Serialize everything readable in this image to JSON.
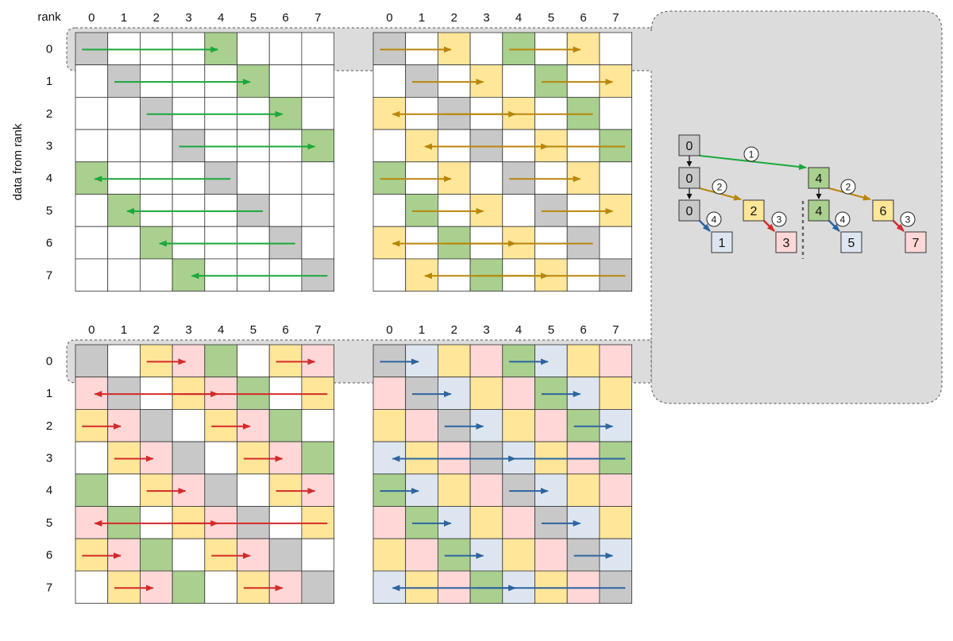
{
  "labels": {
    "rank_header": "rank",
    "row_axis": "data from rank",
    "col_ranks": [
      "0",
      "1",
      "2",
      "3",
      "4",
      "5",
      "6",
      "7"
    ],
    "row_ranks": [
      "0",
      "1",
      "2",
      "3",
      "4",
      "5",
      "6",
      "7"
    ]
  },
  "colors": {
    "white": "#ffffff",
    "gray": "#c8c8c8",
    "green": "#a9d08e",
    "yellow": "#ffe699",
    "pink": "#ffd7d7",
    "blue": "#dde6f0",
    "arrow_step1": "#1aa83a",
    "arrow_step2": "#b8860b",
    "arrow_step3": "#d42a2a",
    "arrow_step4": "#2e64a0",
    "panel_bg": "#dcdcdc"
  },
  "grids": [
    {
      "id": "step1",
      "cells": [
        "GWWWNWWW",
        "WGWWWNWW",
        "WWGWWWNW",
        "WWWGWWWN",
        "NWWWGWWW",
        "WNWWWGWW",
        "WWNWWWGW",
        "WWWNWWWG"
      ],
      "arrow_color": "arrow_step1",
      "arrows": [
        {
          "row": 0,
          "from": 0,
          "to": 4
        },
        {
          "row": 1,
          "from": 1,
          "to": 5
        },
        {
          "row": 2,
          "from": 2,
          "to": 6
        },
        {
          "row": 3,
          "from": 3,
          "to": 7
        },
        {
          "row": 4,
          "from": 4,
          "to": 0
        },
        {
          "row": 5,
          "from": 5,
          "to": 1
        },
        {
          "row": 6,
          "from": 6,
          "to": 2
        },
        {
          "row": 7,
          "from": 7,
          "to": 3
        }
      ]
    },
    {
      "id": "step2",
      "cells": [
        "GWYWNWYW",
        "WGWYWNWY",
        "YWGWYWNW",
        "WYWGWYWN",
        "NWYWGWYW",
        "WNWYWGWY",
        "YWNWYWGW",
        "WYWNWYWG"
      ],
      "arrow_color": "arrow_step2",
      "arrows": [
        {
          "row": 0,
          "from": 0,
          "to": 2
        },
        {
          "row": 0,
          "from": 4,
          "to": 6
        },
        {
          "row": 1,
          "from": 1,
          "to": 3
        },
        {
          "row": 1,
          "from": 5,
          "to": 7
        },
        {
          "row": 2,
          "from": 2,
          "to": 4
        },
        {
          "row": 2,
          "from": 6,
          "to": 0
        },
        {
          "row": 3,
          "from": 3,
          "to": 5
        },
        {
          "row": 3,
          "from": 7,
          "to": 1
        },
        {
          "row": 4,
          "from": 0,
          "to": 2
        },
        {
          "row": 4,
          "from": 4,
          "to": 6
        },
        {
          "row": 5,
          "from": 1,
          "to": 3
        },
        {
          "row": 5,
          "from": 5,
          "to": 7
        },
        {
          "row": 6,
          "from": 6,
          "to": 0
        },
        {
          "row": 6,
          "from": 2,
          "to": 4
        },
        {
          "row": 7,
          "from": 7,
          "to": 1
        },
        {
          "row": 7,
          "from": 3,
          "to": 5
        }
      ]
    },
    {
      "id": "step3",
      "cells": [
        "GWYPNWYP",
        "PGWYPNWY",
        "YPGWYPNW",
        "WYPGWYPN",
        "NWYPGWYP",
        "PNWYPGWY",
        "YPNWYPGW",
        "WYPNWYPG"
      ],
      "arrow_color": "arrow_step3",
      "arrows": [
        {
          "row": 0,
          "from": 2,
          "to": 3
        },
        {
          "row": 0,
          "from": 6,
          "to": 7
        },
        {
          "row": 1,
          "from": 7,
          "to": 0
        },
        {
          "row": 1,
          "from": 3,
          "to": 4
        },
        {
          "row": 2,
          "from": 0,
          "to": 1
        },
        {
          "row": 2,
          "from": 4,
          "to": 5
        },
        {
          "row": 3,
          "from": 1,
          "to": 2
        },
        {
          "row": 3,
          "from": 5,
          "to": 6
        },
        {
          "row": 4,
          "from": 2,
          "to": 3
        },
        {
          "row": 4,
          "from": 6,
          "to": 7
        },
        {
          "row": 5,
          "from": 7,
          "to": 0
        },
        {
          "row": 5,
          "from": 3,
          "to": 4
        },
        {
          "row": 6,
          "from": 0,
          "to": 1
        },
        {
          "row": 6,
          "from": 4,
          "to": 5
        },
        {
          "row": 7,
          "from": 1,
          "to": 2
        },
        {
          "row": 7,
          "from": 5,
          "to": 6
        }
      ]
    },
    {
      "id": "step4",
      "cells": [
        "GBYPNBYP",
        "PGBYPNBY",
        "YPGBYPNB",
        "BYPGBYPN",
        "NBYPGBYP",
        "PNBYPGBY",
        "YPNBYPGB",
        "BYPNBYPG"
      ],
      "arrow_color": "arrow_step4",
      "arrows": [
        {
          "row": 0,
          "from": 0,
          "to": 1
        },
        {
          "row": 0,
          "from": 4,
          "to": 5
        },
        {
          "row": 1,
          "from": 1,
          "to": 2
        },
        {
          "row": 1,
          "from": 5,
          "to": 6
        },
        {
          "row": 2,
          "from": 2,
          "to": 3
        },
        {
          "row": 2,
          "from": 6,
          "to": 7
        },
        {
          "row": 3,
          "from": 7,
          "to": 0
        },
        {
          "row": 3,
          "from": 3,
          "to": 4
        },
        {
          "row": 4,
          "from": 0,
          "to": 1
        },
        {
          "row": 4,
          "from": 4,
          "to": 5
        },
        {
          "row": 5,
          "from": 1,
          "to": 2
        },
        {
          "row": 5,
          "from": 5,
          "to": 6
        },
        {
          "row": 6,
          "from": 2,
          "to": 3
        },
        {
          "row": 6,
          "from": 6,
          "to": 7
        },
        {
          "row": 7,
          "from": 7,
          "to": 0
        },
        {
          "row": 7,
          "from": 3,
          "to": 4
        }
      ]
    }
  ],
  "tree": {
    "nodes": [
      {
        "id": "n0a",
        "label": "0",
        "color": "gray"
      },
      {
        "id": "n0b",
        "label": "0",
        "color": "gray"
      },
      {
        "id": "n0c",
        "label": "0",
        "color": "gray"
      },
      {
        "id": "n1",
        "label": "1",
        "color": "blue"
      },
      {
        "id": "n2",
        "label": "2",
        "color": "yellow"
      },
      {
        "id": "n3",
        "label": "3",
        "color": "pink"
      },
      {
        "id": "n4a",
        "label": "4",
        "color": "green"
      },
      {
        "id": "n4b",
        "label": "4",
        "color": "green"
      },
      {
        "id": "n5",
        "label": "5",
        "color": "blue"
      },
      {
        "id": "n6",
        "label": "6",
        "color": "yellow"
      },
      {
        "id": "n7",
        "label": "7",
        "color": "pink"
      }
    ],
    "step_badges": [
      {
        "id": "b1",
        "label": "1"
      },
      {
        "id": "b2a",
        "label": "2"
      },
      {
        "id": "b2b",
        "label": "2"
      },
      {
        "id": "b3a",
        "label": "3"
      },
      {
        "id": "b3b",
        "label": "3"
      },
      {
        "id": "b4a",
        "label": "4"
      },
      {
        "id": "b4b",
        "label": "4"
      }
    ]
  }
}
